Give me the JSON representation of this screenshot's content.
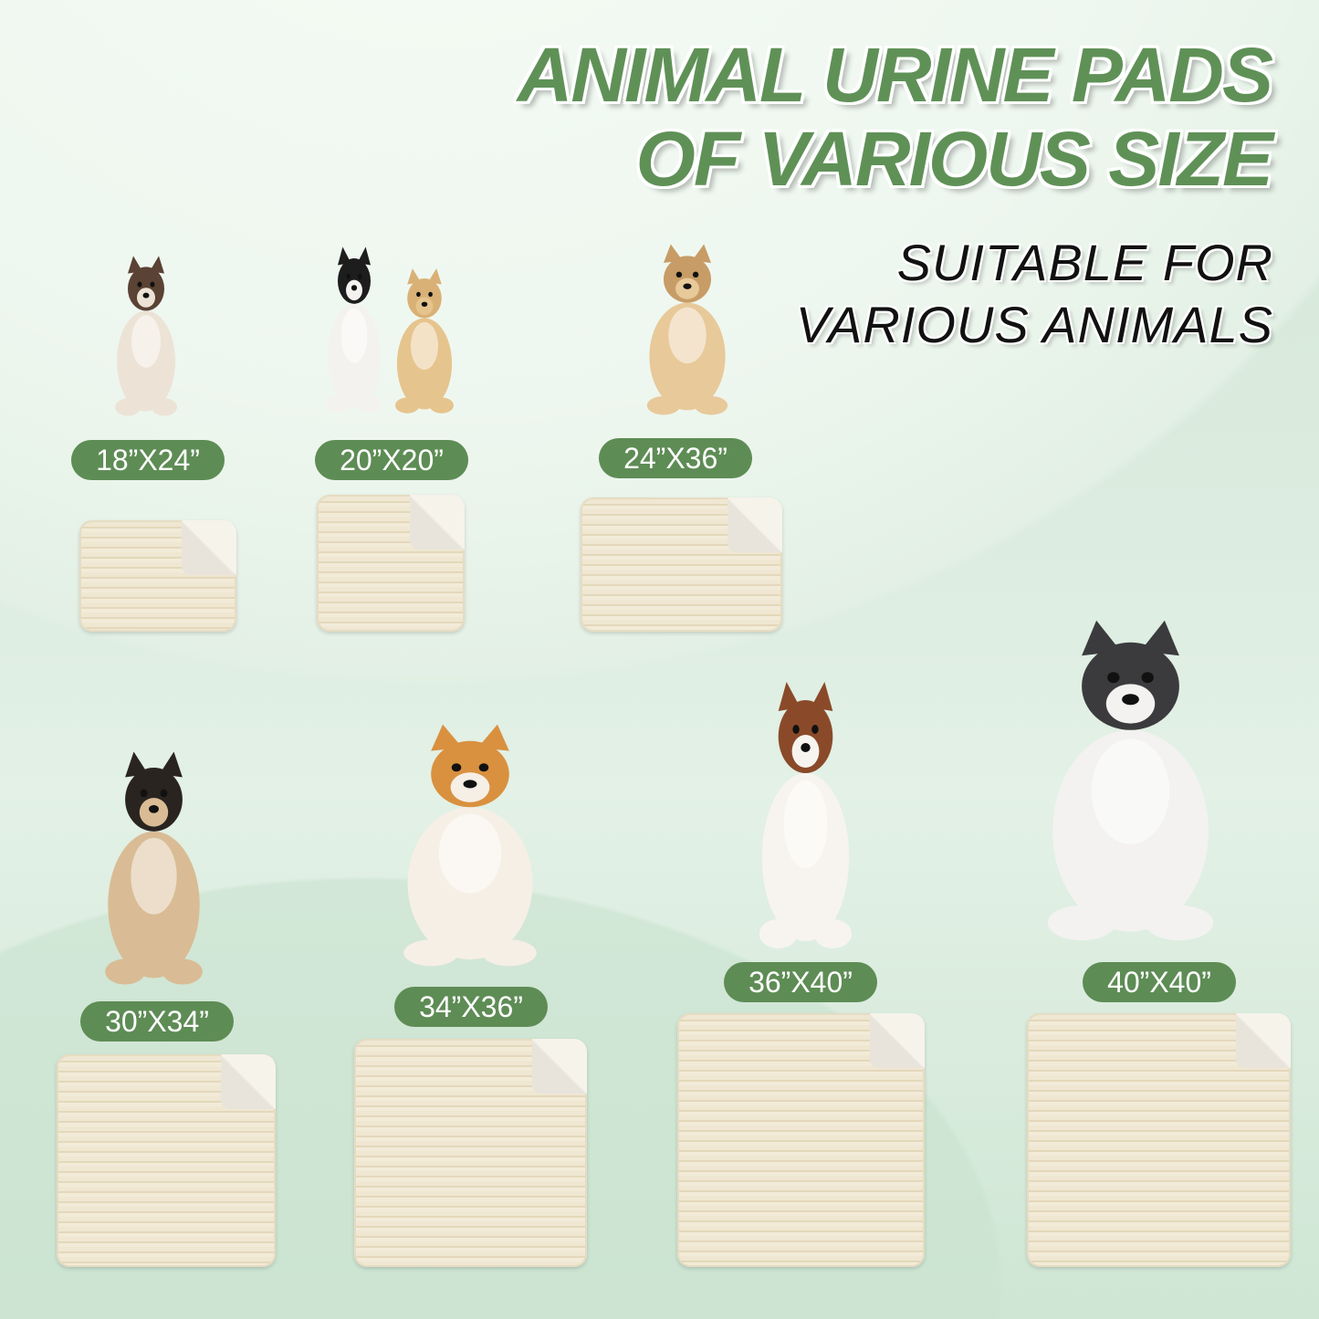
{
  "header": {
    "title_line1": "ANIMAL URINE PADS",
    "title_line2": "OF VARIOUS SIZE",
    "subtitle_line1": "SUITABLE FOR",
    "subtitle_line2": "VARIOUS ANIMALS"
  },
  "colors": {
    "accent_green": "#5e8c55",
    "pad": "#efe7d2",
    "background": "#dcece0"
  },
  "sizes": [
    {
      "label": "18”X24”",
      "animal": "siamese-cat"
    },
    {
      "label": "20”X20”",
      "animal": "cat-and-puppy"
    },
    {
      "label": "24”X36”",
      "animal": "tan-dog"
    },
    {
      "label": "30”X34”",
      "animal": "pug"
    },
    {
      "label": "34”X36”",
      "animal": "corgi"
    },
    {
      "label": "36”X40”",
      "animal": "australian-shepherd"
    },
    {
      "label": "40”X40”",
      "animal": "husky"
    }
  ]
}
